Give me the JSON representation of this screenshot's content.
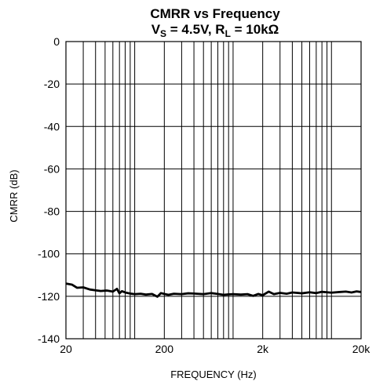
{
  "chart_data": {
    "type": "line",
    "title": "CMRR vs Frequency",
    "subtitle": {
      "vs_prefix": "V",
      "vs_sub": "S",
      "vs_text": " = 4.5V, R",
      "rl_sub": "L",
      "rl_text": " = 10kΩ"
    },
    "xlabel": "FREQUENCY (Hz)",
    "ylabel": "CMRR (dB)",
    "x_scale": "log",
    "xlim": [
      20,
      20000
    ],
    "ylim": [
      -140,
      0
    ],
    "x_ticks": [
      20,
      200,
      2000,
      20000
    ],
    "x_tick_labels": [
      "20",
      "200",
      "2k",
      "20k"
    ],
    "y_ticks": [
      0,
      -20,
      -40,
      -60,
      -80,
      -100,
      -120,
      -140
    ],
    "y_tick_labels": [
      "0",
      "-20",
      "-40",
      "-60",
      "-80",
      "-100",
      "-120",
      "-140"
    ],
    "grid": true,
    "series": [
      {
        "color": "#000000",
        "x": [
          20,
          23,
          26,
          30,
          35,
          40,
          45,
          52,
          60,
          66,
          70,
          74,
          80,
          90,
          100,
          115,
          130,
          150,
          170,
          185,
          200,
          220,
          250,
          300,
          350,
          400,
          500,
          600,
          700,
          800,
          900,
          1000,
          1200,
          1400,
          1600,
          1800,
          2000,
          2300,
          2600,
          3000,
          3500,
          4000,
          5000,
          6000,
          7000,
          8000,
          10000,
          12000,
          14000,
          16000,
          18000,
          20000
        ],
        "y": [
          -114,
          -114.5,
          -116,
          -115.8,
          -116.8,
          -117.2,
          -117.5,
          -117.3,
          -117.8,
          -116.5,
          -118.6,
          -117.6,
          -118.2,
          -118.7,
          -119,
          -118.8,
          -119.2,
          -118.9,
          -120.2,
          -118.5,
          -118.9,
          -119.3,
          -118.8,
          -119,
          -118.6,
          -118.7,
          -119,
          -118.5,
          -118.9,
          -119.3,
          -119.1,
          -119,
          -119.2,
          -119,
          -119.8,
          -118.9,
          -119.5,
          -117.8,
          -119,
          -118.4,
          -118.8,
          -118.2,
          -118.6,
          -118.1,
          -118.5,
          -117.9,
          -118.3,
          -118.0,
          -117.8,
          -118.2,
          -117.7,
          -118.0
        ]
      }
    ]
  }
}
